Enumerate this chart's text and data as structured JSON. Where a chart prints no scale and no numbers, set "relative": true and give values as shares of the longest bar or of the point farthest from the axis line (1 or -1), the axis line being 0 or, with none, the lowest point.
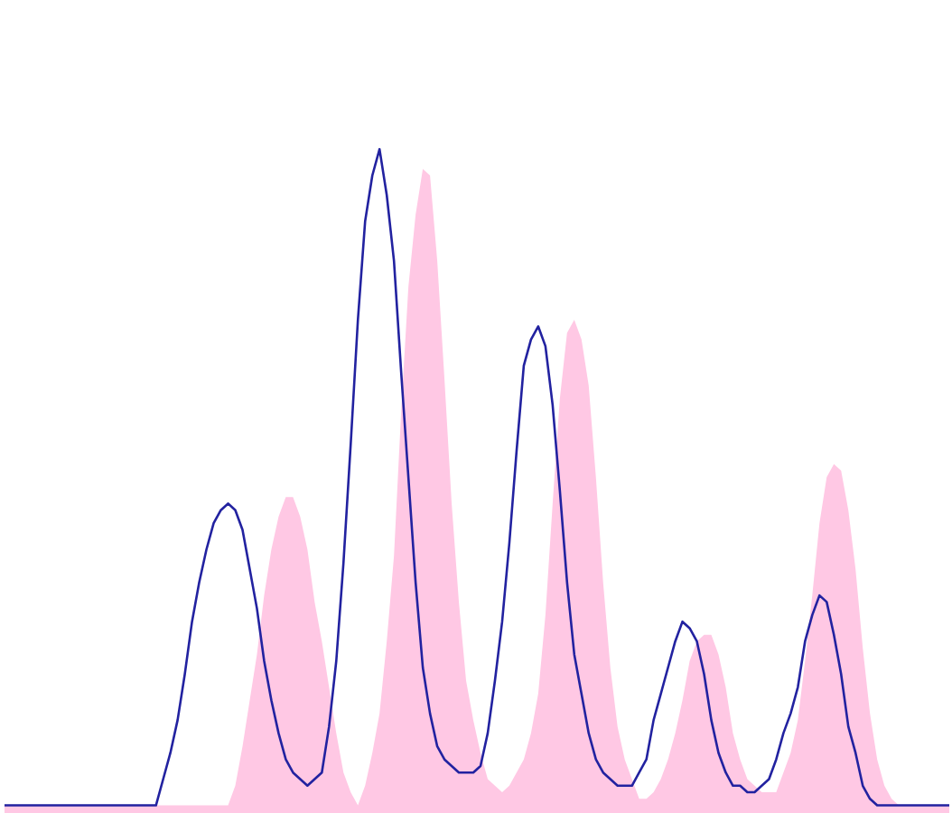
{
  "chart_data": {
    "type": "line",
    "relative": true,
    "categories": [
      null,
      null,
      null,
      null,
      null,
      null,
      null,
      null,
      null,
      null,
      null,
      null,
      null,
      null,
      null,
      null,
      null,
      null,
      null,
      null,
      null,
      null,
      null,
      null,
      null,
      null,
      null,
      null,
      null,
      null,
      null,
      null,
      null,
      null,
      null,
      null,
      null,
      null,
      null,
      null,
      null,
      null,
      null,
      null,
      null,
      null,
      null,
      null,
      null,
      null,
      null,
      null,
      null,
      null,
      null,
      null,
      null,
      null,
      null,
      null,
      null,
      null,
      null,
      null,
      null,
      null,
      null,
      null,
      null,
      null,
      null,
      null,
      null,
      null,
      null,
      null,
      null,
      null,
      null,
      null,
      null,
      null,
      null,
      null,
      null,
      null,
      null,
      null,
      null,
      null,
      null,
      null,
      null,
      null,
      null,
      null,
      null,
      null,
      null,
      null,
      null,
      null,
      null,
      null,
      null,
      null,
      null,
      null,
      null,
      null,
      null,
      null,
      null,
      null,
      null,
      null,
      null,
      null,
      null,
      null,
      null,
      null,
      null,
      null,
      null,
      null,
      null,
      null,
      null,
      null,
      null,
      null
    ],
    "series": [
      {
        "type": "area",
        "color": "#ffc8e4",
        "values": [
          0,
          0,
          0,
          0,
          0,
          0,
          0,
          0,
          0,
          0,
          0,
          0,
          0,
          0,
          0,
          0,
          0,
          0,
          0,
          0,
          0,
          0,
          0,
          0,
          0,
          0,
          0,
          0,
          0,
          0,
          0,
          0,
          0.03,
          0.09,
          0.16,
          0.23,
          0.32,
          0.39,
          0.44,
          0.47,
          0.47,
          0.44,
          0.39,
          0.31,
          0.25,
          0.18,
          0.11,
          0.05,
          0.02,
          0,
          0.03,
          0.08,
          0.14,
          0.25,
          0.38,
          0.6,
          0.79,
          0.9,
          0.97,
          0.96,
          0.83,
          0.65,
          0.46,
          0.31,
          0.19,
          0.13,
          0.08,
          0.04,
          0.03,
          0.02,
          0.03,
          0.05,
          0.07,
          0.11,
          0.17,
          0.29,
          0.46,
          0.62,
          0.72,
          0.74,
          0.71,
          0.64,
          0.5,
          0.34,
          0.21,
          0.12,
          0.07,
          0.04,
          0.01,
          0.01,
          0.02,
          0.04,
          0.07,
          0.11,
          0.16,
          0.22,
          0.25,
          0.26,
          0.26,
          0.23,
          0.18,
          0.11,
          0.07,
          0.04,
          0.03,
          0.02,
          0.02,
          0.02,
          0.05,
          0.08,
          0.13,
          0.22,
          0.32,
          0.43,
          0.5,
          0.52,
          0.51,
          0.45,
          0.36,
          0.24,
          0.14,
          0.07,
          0.03,
          0.01,
          0,
          0,
          0,
          0,
          0,
          0,
          0,
          0
        ]
      },
      {
        "color": "#2222a0",
        "values": [
          0,
          0,
          0,
          0,
          0,
          0,
          0,
          0,
          0,
          0,
          0,
          0,
          0,
          0,
          0,
          0,
          0,
          0,
          0,
          0,
          0,
          0,
          0.04,
          0.08,
          0.13,
          0.2,
          0.28,
          0.34,
          0.39,
          0.43,
          0.45,
          0.46,
          0.45,
          0.42,
          0.36,
          0.3,
          0.22,
          0.16,
          0.11,
          0.07,
          0.05,
          0.04,
          0.03,
          0.04,
          0.05,
          0.12,
          0.22,
          0.37,
          0.55,
          0.74,
          0.89,
          0.96,
          1.0,
          0.93,
          0.83,
          0.66,
          0.5,
          0.34,
          0.21,
          0.14,
          0.09,
          0.07,
          0.06,
          0.05,
          0.05,
          0.05,
          0.06,
          0.11,
          0.19,
          0.28,
          0.4,
          0.54,
          0.67,
          0.71,
          0.73,
          0.7,
          0.61,
          0.48,
          0.34,
          0.23,
          0.17,
          0.11,
          0.07,
          0.05,
          0.04,
          0.03,
          0.03,
          0.03,
          0.05,
          0.07,
          0.13,
          0.17,
          0.21,
          0.25,
          0.28,
          0.27,
          0.25,
          0.2,
          0.13,
          0.08,
          0.05,
          0.03,
          0.03,
          0.02,
          0.02,
          0.03,
          0.04,
          0.07,
          0.11,
          0.14,
          0.18,
          0.25,
          0.29,
          0.32,
          0.31,
          0.26,
          0.2,
          0.12,
          0.08,
          0.03,
          0.01,
          0,
          0,
          0,
          0,
          0,
          0,
          0,
          0,
          0,
          0,
          0
        ]
      }
    ]
  }
}
